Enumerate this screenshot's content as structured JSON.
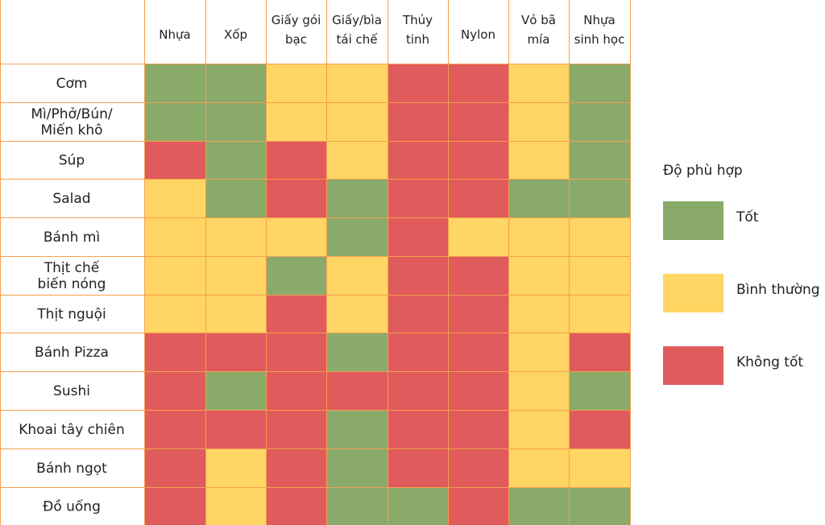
{
  "chart_data": {
    "type": "heatmap",
    "columns": [
      [
        "Nhựa"
      ],
      [
        "Xốp"
      ],
      [
        "Giấy gói",
        "bạc"
      ],
      [
        "Giấy/bìa",
        "tái chế"
      ],
      [
        "Thủy",
        "tinh"
      ],
      [
        "Nylon"
      ],
      [
        "Vỏ bã",
        "mía"
      ],
      [
        "Nhựa",
        "sinh học"
      ]
    ],
    "rows": [
      [
        "Cơm"
      ],
      [
        "Mì/Phở/Bún/",
        "Miến khô"
      ],
      [
        "Súp"
      ],
      [
        "Salad"
      ],
      [
        "Bánh mì"
      ],
      [
        "Thịt chế",
        "biến nóng"
      ],
      [
        "Thịt nguội"
      ],
      [
        "Bánh Pizza"
      ],
      [
        "Sushi"
      ],
      [
        "Khoai tây chiên"
      ],
      [
        "Bánh ngọt"
      ],
      [
        "Đồ uống"
      ]
    ],
    "values": [
      [
        "G",
        "G",
        "Y",
        "Y",
        "R",
        "R",
        "Y",
        "G"
      ],
      [
        "G",
        "G",
        "Y",
        "Y",
        "R",
        "R",
        "Y",
        "G"
      ],
      [
        "R",
        "G",
        "R",
        "Y",
        "R",
        "R",
        "Y",
        "G"
      ],
      [
        "Y",
        "G",
        "R",
        "G",
        "R",
        "R",
        "G",
        "G"
      ],
      [
        "Y",
        "Y",
        "Y",
        "G",
        "R",
        "Y",
        "Y",
        "Y"
      ],
      [
        "Y",
        "Y",
        "G",
        "Y",
        "R",
        "R",
        "Y",
        "Y"
      ],
      [
        "Y",
        "Y",
        "R",
        "Y",
        "R",
        "R",
        "Y",
        "Y"
      ],
      [
        "R",
        "R",
        "R",
        "G",
        "R",
        "R",
        "Y",
        "R"
      ],
      [
        "R",
        "G",
        "R",
        "R",
        "R",
        "R",
        "Y",
        "G"
      ],
      [
        "R",
        "R",
        "R",
        "G",
        "R",
        "R",
        "Y",
        "R"
      ],
      [
        "R",
        "Y",
        "R",
        "G",
        "R",
        "R",
        "Y",
        "Y"
      ],
      [
        "R",
        "Y",
        "R",
        "G",
        "G",
        "R",
        "G",
        "G"
      ]
    ],
    "legend": {
      "title": "Độ phù hợp",
      "placement": "right",
      "items": [
        {
          "key": "G",
          "label": "Tốt",
          "color": "#8AAA6A"
        },
        {
          "key": "Y",
          "label": "Bình thường",
          "color": "#FFD563"
        },
        {
          "key": "R",
          "label": "Không tốt",
          "color": "#E05B5B"
        }
      ]
    },
    "grid_color": "#F5A050"
  }
}
